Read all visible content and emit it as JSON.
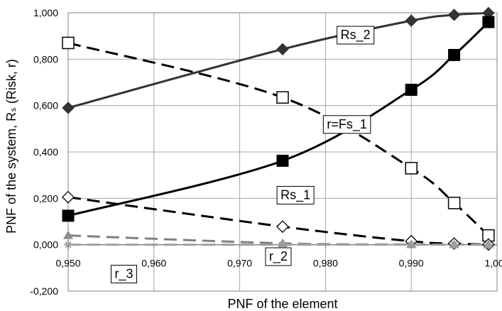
{
  "chart_data": {
    "type": "line",
    "xlabel": "PNF of the element",
    "ylabel": "PNF of the system, Rₛ (Risk, r)",
    "xlim": [
      0.95,
      1.0
    ],
    "ylim": [
      -0.2,
      1.0
    ],
    "grid": true,
    "x_ticks": [
      {
        "value": 0.95,
        "label": "0,950"
      },
      {
        "value": 0.96,
        "label": "0,960"
      },
      {
        "value": 0.97,
        "label": "0,970"
      },
      {
        "value": 0.98,
        "label": "0,980"
      },
      {
        "value": 0.99,
        "label": "0,990"
      },
      {
        "value": 1.0,
        "label": "1,000"
      }
    ],
    "y_ticks": [
      {
        "value": -0.2,
        "label": "-0,200"
      },
      {
        "value": 0.0,
        "label": "0,000"
      },
      {
        "value": 0.2,
        "label": "0,200"
      },
      {
        "value": 0.4,
        "label": "0,400"
      },
      {
        "value": 0.6,
        "label": "0,600"
      },
      {
        "value": 0.8,
        "label": "0,800"
      },
      {
        "value": 1.0,
        "label": "1,000"
      }
    ],
    "series": [
      {
        "name": "Rs_2",
        "color": "#333333",
        "line_style": "solid",
        "marker": "diamond-filled",
        "x": [
          0.95,
          0.975,
          0.99,
          0.995,
          0.999
        ],
        "y": [
          0.59,
          0.843,
          0.966,
          0.991,
          0.999
        ]
      },
      {
        "name": "r=Fs_1",
        "color": "#000000",
        "line_style": "dashed",
        "marker": "square-open",
        "x": [
          0.95,
          0.975,
          0.99,
          0.995,
          0.999
        ],
        "y": [
          0.87,
          0.635,
          0.33,
          0.18,
          0.04
        ]
      },
      {
        "name": "Rs_1",
        "color": "#000000",
        "line_style": "dashed",
        "marker": "diamond-open",
        "x": [
          0.95,
          0.975,
          0.99,
          0.995,
          0.999
        ],
        "y": [
          0.205,
          0.078,
          0.015,
          0.005,
          0.001
        ]
      },
      {
        "name": "",
        "color": "#000000",
        "line_style": "solid",
        "marker": "square-filled",
        "x": [
          0.95,
          0.975,
          0.99,
          0.995,
          0.999
        ],
        "y": [
          0.125,
          0.362,
          0.668,
          0.818,
          0.96
        ]
      },
      {
        "name": "r_2",
        "color": "#808080",
        "line_style": "dashed",
        "marker": "triangle-filled",
        "x": [
          0.95,
          0.975,
          0.99,
          0.995,
          0.999
        ],
        "y": [
          0.04,
          0.006,
          0.001,
          0.0005,
          0.0001
        ]
      },
      {
        "name": "r_3",
        "color": "#a0a0a0",
        "line_style": "dashed",
        "marker": "star",
        "x": [
          0.95,
          0.975,
          0.99,
          0.995,
          0.999
        ],
        "y": [
          0.0,
          0.0,
          0.0,
          0.0,
          0.0
        ]
      }
    ],
    "callouts": [
      {
        "text": "Rs_2",
        "anchor_x": 0.9835,
        "anchor_y": 0.905
      },
      {
        "text": "r=Fs_1",
        "anchor_x": 0.9825,
        "anchor_y": 0.52
      },
      {
        "text": "Rs_1",
        "anchor_x": 0.9765,
        "anchor_y": 0.215
      },
      {
        "text": "r_2",
        "anchor_x": 0.9745,
        "anchor_y": -0.05
      },
      {
        "text": "r_3",
        "anchor_x": 0.9565,
        "anchor_y": -0.125
      }
    ]
  }
}
